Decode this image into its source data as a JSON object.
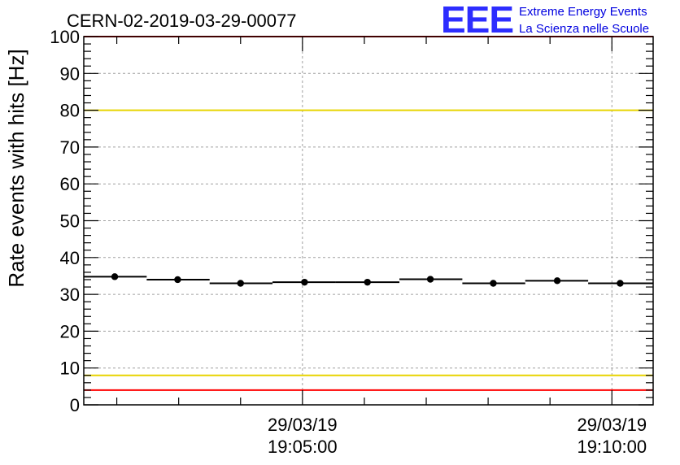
{
  "chart_data": {
    "type": "scatter",
    "title": "CERN-02-2019-03-29-00077",
    "xlabel": "",
    "ylabel": "Rate events with hits [Hz]",
    "ylim": [
      0,
      100
    ],
    "y_ticks": [
      0,
      10,
      20,
      30,
      40,
      50,
      60,
      70,
      80,
      90,
      100
    ],
    "x_range": [
      "19:01:28",
      "19:10:40"
    ],
    "x_ticks": [
      {
        "time": "19:05:00",
        "date_label": "29/03/19",
        "time_label": "19:05:00"
      },
      {
        "time": "19:10:00",
        "date_label": "29/03/19",
        "time_label": "19:10:00"
      }
    ],
    "grid": true,
    "series": [
      {
        "marker": "circle",
        "color": "#000000",
        "points": [
          {
            "x_start": "19:01:28",
            "x_end": "19:02:29",
            "x": "19:01:58",
            "y": 34.8
          },
          {
            "x_start": "19:02:29",
            "x_end": "19:03:30",
            "x": "19:02:59",
            "y": 34.0
          },
          {
            "x_start": "19:03:30",
            "x_end": "19:04:31",
            "x": "19:04:00",
            "y": 33.0
          },
          {
            "x_start": "19:04:31",
            "x_end": "19:05:32",
            "x": "19:05:02",
            "y": 33.3
          },
          {
            "x_start": "19:05:32",
            "x_end": "19:06:34",
            "x": "19:06:03",
            "y": 33.3
          },
          {
            "x_start": "19:06:34",
            "x_end": "19:07:35",
            "x": "19:07:04",
            "y": 34.1
          },
          {
            "x_start": "19:07:35",
            "x_end": "19:08:36",
            "x": "19:08:05",
            "y": 33.0
          },
          {
            "x_start": "19:08:36",
            "x_end": "19:09:37",
            "x": "19:09:07",
            "y": 33.7
          },
          {
            "x_start": "19:09:37",
            "x_end": "19:10:40",
            "x": "19:10:08",
            "y": 33.0
          }
        ]
      }
    ],
    "reference_lines": [
      {
        "y": 100,
        "color": "#ff0000"
      },
      {
        "y": 80,
        "color": "#e8d400"
      },
      {
        "y": 8,
        "color": "#e8d400"
      },
      {
        "y": 4,
        "color": "#ff0000"
      }
    ]
  },
  "logo": {
    "letters": "EEE",
    "line1": "Extreme Energy Events",
    "line2": "La Scienza nelle Scuole",
    "color": "#0000e0"
  }
}
